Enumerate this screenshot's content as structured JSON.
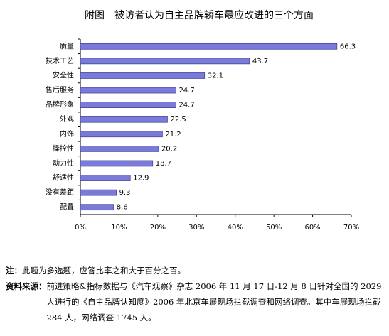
{
  "chart_data": {
    "type": "hbar",
    "title": "附图　被访者认为自主品牌轿车最应改进的三个方面",
    "categories": [
      "质量",
      "技术工艺",
      "安全性",
      "售后服务",
      "品牌形象",
      "外观",
      "内饰",
      "操控性",
      "动力性",
      "舒适性",
      "没有差距",
      "配置"
    ],
    "values": [
      66.3,
      43.7,
      32.1,
      24.7,
      24.7,
      22.5,
      21.2,
      20.2,
      18.7,
      12.9,
      9.3,
      8.6
    ],
    "color": "#7a7ad8",
    "xlim": [
      0,
      70
    ],
    "xticks": [
      {
        "value": 0,
        "label": "0%"
      },
      {
        "value": 10,
        "label": "10%"
      },
      {
        "value": 20,
        "label": "20%"
      },
      {
        "value": 30,
        "label": "30%"
      },
      {
        "value": 40,
        "label": "40%"
      },
      {
        "value": 50,
        "label": "50%"
      },
      {
        "value": 60,
        "label": "60%"
      },
      {
        "value": 70,
        "label": "70%"
      }
    ]
  },
  "notes": {
    "note_label": "注：",
    "note_text": "此题为多选题，应答比率之和大于百分之百。",
    "source_label": "资料来源：",
    "source_text": "前进策略&指标数据与《汽车观察》杂志 2006 年 11 月 17 日-12 月 8 日针对全国的 2029 人进行的《自主品牌认知度》2006 年北京车展现场拦截调查和网络调查。其中车展现场拦截 284 人，网络调查 1745 人。"
  }
}
